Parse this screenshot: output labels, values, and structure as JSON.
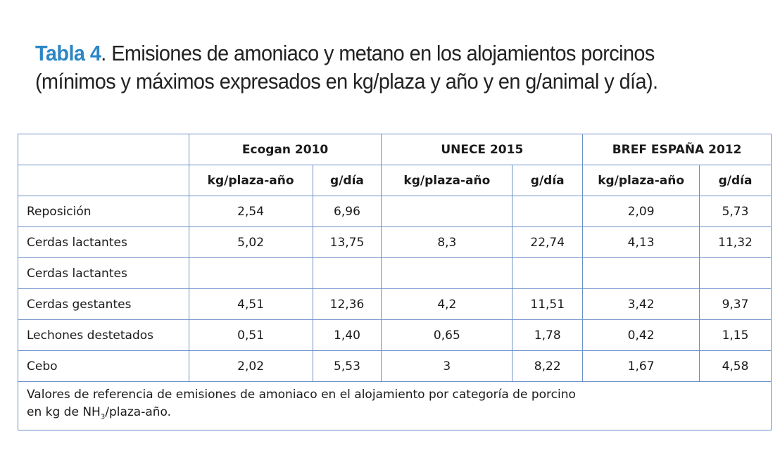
{
  "caption": {
    "label": "Tabla 4",
    "text": ". Emisiones de amoniaco y metano en los alojamientos porcinos (mínimos y máximos expresados en kg/plaza y año y en g/animal y día)."
  },
  "table": {
    "groups": [
      "Ecogan 2010",
      "UNECE 2015",
      "BREF ESPAÑA 2012"
    ],
    "units": [
      "kg/plaza-año",
      "g/día",
      "kg/plaza-año",
      "g/día",
      "kg/plaza-año",
      "g/día"
    ],
    "rows": [
      {
        "label": "Reposición",
        "values": [
          "2,54",
          "6,96",
          "",
          "",
          "2,09",
          "5,73"
        ]
      },
      {
        "label": "Cerdas lactantes",
        "values": [
          "5,02",
          "13,75",
          "8,3",
          "22,74",
          "4,13",
          "11,32"
        ]
      },
      {
        "label": "Cerdas lactantes",
        "values": [
          "",
          "",
          "",
          "",
          "",
          ""
        ]
      },
      {
        "label": "Cerdas gestantes",
        "values": [
          "4,51",
          "12,36",
          "4,2",
          "11,51",
          "3,42",
          "9,37"
        ]
      },
      {
        "label": "Lechones destetados",
        "values": [
          "0,51",
          "1,40",
          "0,65",
          "1,78",
          "0,42",
          "1,15"
        ]
      },
      {
        "label": "Cebo",
        "values": [
          "2,02",
          "5,53",
          "3",
          "8,22",
          "1,67",
          "4,58"
        ]
      }
    ],
    "note": {
      "line1": "Valores de referencia de emisiones de amoniaco en el alojamiento por categoría de porcino",
      "line2_pre": "en kg de NH",
      "line2_sub": "3",
      "line2_post": "/plaza-año."
    }
  }
}
